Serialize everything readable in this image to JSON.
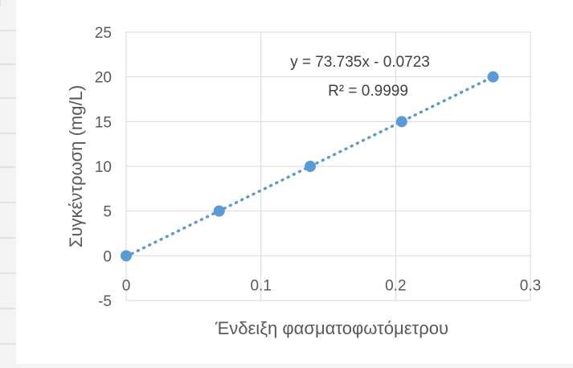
{
  "chart_data": {
    "type": "scatter",
    "xlabel": "Ένδειξη φασματοφωτόμετρου",
    "ylabel": "Συγκέντρωση (mg/L)",
    "xlim": [
      0,
      0.3
    ],
    "ylim": [
      -5,
      25
    ],
    "x_ticks": [
      0,
      0.1,
      0.2,
      0.3
    ],
    "x_tick_labels": [
      "0",
      "0.1",
      "0.2",
      "0.3"
    ],
    "y_ticks": [
      -5,
      0,
      5,
      10,
      15,
      20,
      25
    ],
    "y_tick_labels": [
      "-5",
      "0",
      "5",
      "10",
      "15",
      "20",
      "25"
    ],
    "grid": true,
    "series": [
      {
        "x": [
          0,
          0.069,
          0.1366,
          0.2045,
          0.2723
        ],
        "y": [
          0,
          5,
          10,
          15,
          20
        ],
        "color": "#5b9bd5"
      }
    ],
    "trendline": {
      "type": "linear",
      "slope": 73.735,
      "intercept": -0.0723,
      "x_range": [
        0,
        0.2723
      ],
      "style": "dotted",
      "color": "#5b9bd5"
    },
    "annotations": {
      "equation": "y = 73.735x - 0.0723",
      "r_squared": "R² = 0.9999"
    }
  }
}
